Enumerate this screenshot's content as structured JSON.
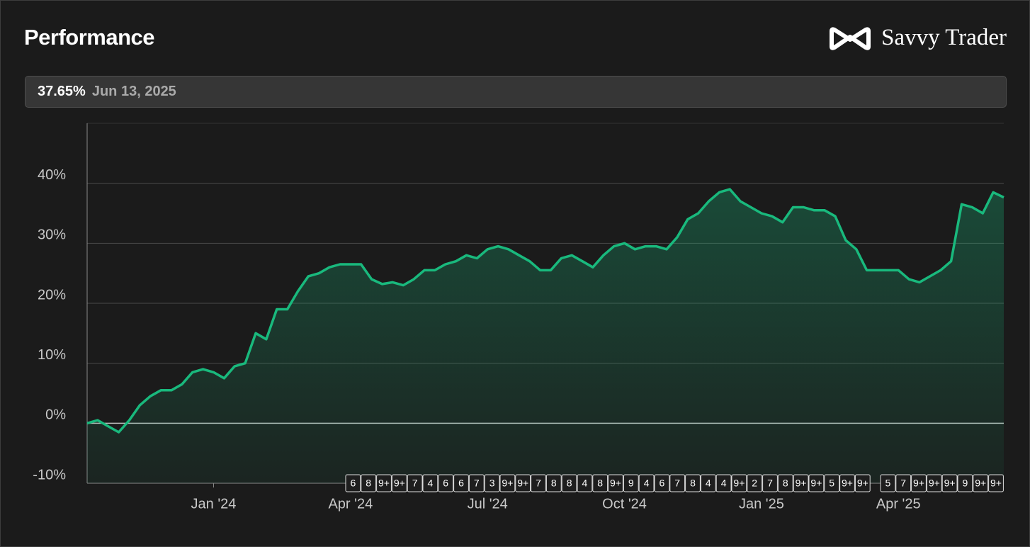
{
  "header": {
    "title": "Performance",
    "brand": "Savvy Trader"
  },
  "readout": {
    "value": "37.65%",
    "date": "Jun 13, 2025"
  },
  "chart_data": {
    "type": "area",
    "categories": [
      null,
      null,
      null,
      null,
      null,
      null,
      null,
      null,
      null,
      null,
      null,
      null,
      "Jan '24",
      null,
      null,
      null,
      null,
      null,
      null,
      null,
      null,
      null,
      null,
      null,
      null,
      "Apr '24",
      null,
      null,
      null,
      null,
      null,
      null,
      null,
      null,
      null,
      null,
      null,
      null,
      "Jul '24",
      null,
      null,
      null,
      null,
      null,
      null,
      null,
      null,
      null,
      null,
      null,
      null,
      "Oct '24",
      null,
      null,
      null,
      null,
      null,
      null,
      null,
      null,
      null,
      null,
      null,
      null,
      "Jan '25",
      null,
      null,
      null,
      null,
      null,
      null,
      null,
      null,
      null,
      null,
      null,
      null,
      "Apr '25",
      null,
      null,
      null,
      null,
      null,
      null,
      null,
      null,
      null,
      null
    ],
    "series": [
      {
        "color": "#19b97d",
        "values": [
          0,
          0.5,
          -0.5,
          -1.5,
          0.5,
          3,
          4.5,
          5.5,
          5.5,
          6.5,
          8.5,
          9,
          8.5,
          7.5,
          9.5,
          10,
          15,
          14,
          19,
          19,
          22,
          24.5,
          25,
          26,
          26.5,
          26.5,
          26.5,
          24,
          23.2,
          23.5,
          23,
          24,
          25.5,
          25.5,
          26.5,
          27,
          28,
          27.5,
          29,
          29.5,
          29,
          28,
          27,
          25.5,
          25.5,
          27.5,
          28,
          27,
          26,
          28,
          29.5,
          30,
          29,
          29.5,
          29.5,
          29,
          31,
          34,
          35,
          37,
          38.5,
          39,
          37,
          36,
          35,
          34.5,
          33.5,
          36,
          36,
          35.5,
          35.5,
          34.5,
          30.5,
          29,
          25.5,
          25.5,
          25.5,
          25.5,
          24,
          23.5,
          24.5,
          25.5,
          27,
          36.5,
          36,
          35,
          38.5,
          37.65
        ]
      }
    ],
    "ylim": [
      -10,
      50
    ],
    "yticks": [
      {
        "value": -10,
        "label": "-10%"
      },
      {
        "value": 0,
        "label": "0%"
      },
      {
        "value": 10,
        "label": "10%"
      },
      {
        "value": 20,
        "label": "20%"
      },
      {
        "value": 30,
        "label": "30%"
      },
      {
        "value": 40,
        "label": "40%"
      }
    ],
    "grid": true,
    "event_markers": [
      [
        "6",
        "8",
        "9+",
        "9+",
        "7",
        "4",
        "6",
        "6",
        "7",
        "3",
        "9+",
        "9+",
        "7",
        "8",
        "8",
        "4",
        "8",
        "9+",
        "9",
        "4",
        "6",
        "7",
        "8",
        "4",
        "4",
        "9+",
        "2",
        "7",
        "8",
        "9+",
        "9+",
        "5",
        "9+",
        "9+"
      ],
      [
        "5",
        "7",
        "9+",
        "9+",
        "9+",
        "9",
        "9+",
        "9+"
      ]
    ]
  }
}
